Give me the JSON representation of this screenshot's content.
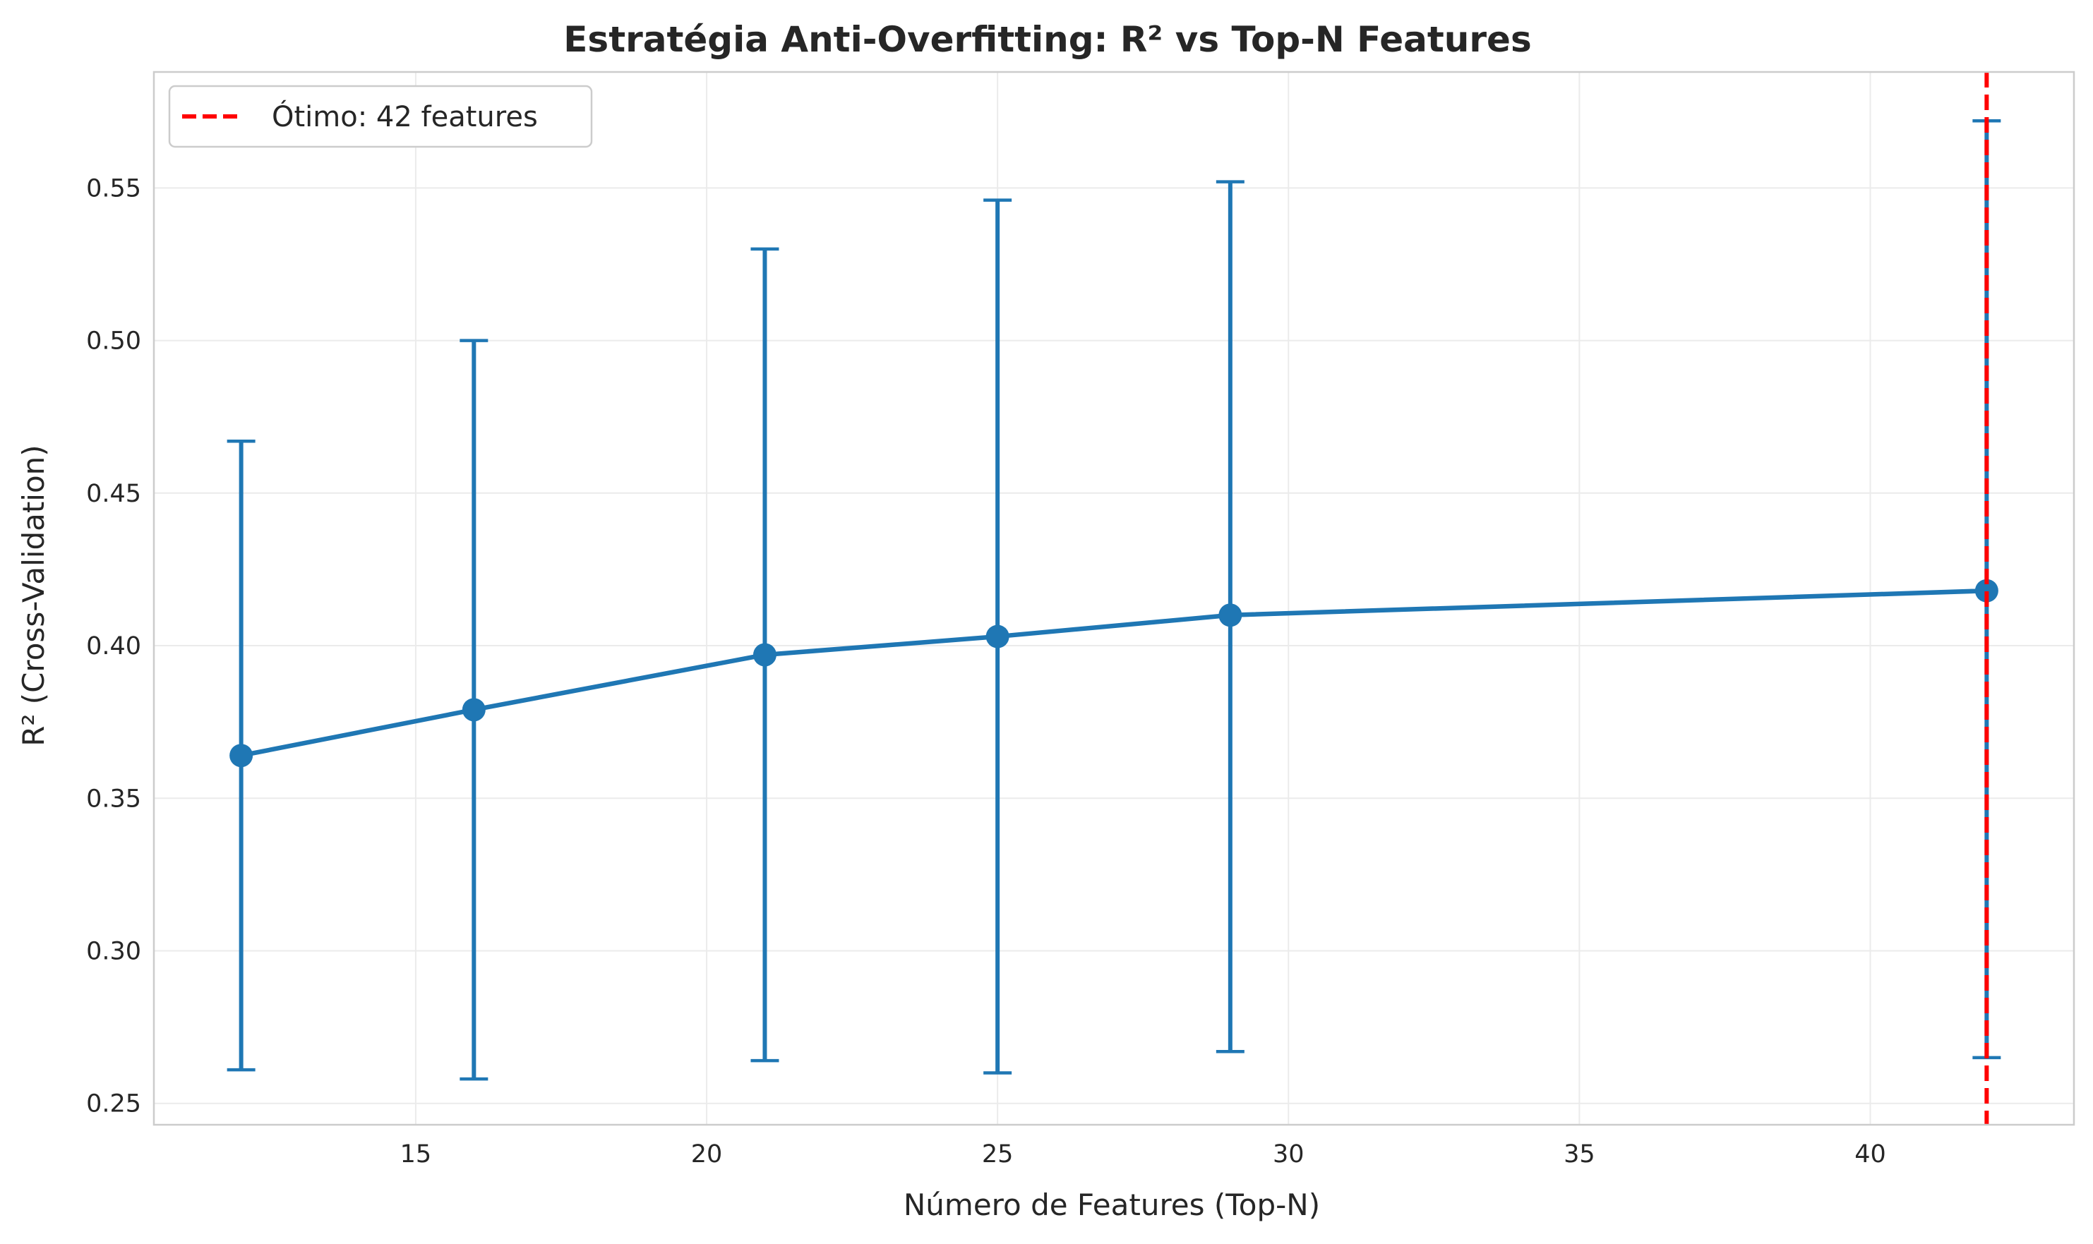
{
  "chart_data": {
    "type": "line",
    "title": "Estratégia Anti-Overfitting: R² vs Top-N Features",
    "xlabel": "Número de Features (Top-N)",
    "ylabel": "R² (Cross-Validation)",
    "xlim": [
      10.5,
      43.5
    ],
    "ylim": [
      0.243,
      0.588
    ],
    "xticks": [
      15,
      20,
      25,
      30,
      35,
      40
    ],
    "xtick_labels": [
      "15",
      "20",
      "25",
      "30",
      "35",
      "40"
    ],
    "yticks": [
      0.25,
      0.3,
      0.35,
      0.4,
      0.45,
      0.5,
      0.55
    ],
    "ytick_labels": [
      "0.25",
      "0.30",
      "0.35",
      "0.40",
      "0.45",
      "0.50",
      "0.55"
    ],
    "grid": true,
    "legend_position": "top-left",
    "series": [
      {
        "x": [
          12,
          16,
          21,
          25,
          29,
          42
        ],
        "y": [
          0.364,
          0.379,
          0.397,
          0.403,
          0.41,
          0.418
        ],
        "yerr_low": [
          0.261,
          0.258,
          0.264,
          0.26,
          0.267,
          0.265
        ],
        "yerr_high": [
          0.467,
          0.5,
          0.53,
          0.546,
          0.552,
          0.572
        ],
        "color": "#1f77b4"
      }
    ],
    "reference_line": {
      "orientation": "vertical",
      "x": 42,
      "label": "Ótimo: 42 features",
      "color": "#ff0000",
      "style": "dashed"
    }
  }
}
